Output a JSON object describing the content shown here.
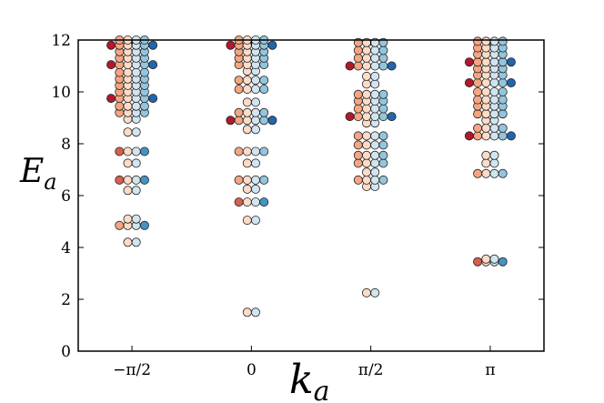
{
  "chart_data": {
    "type": "scatter",
    "title": "",
    "xlabel": "k",
    "xlabel_subscript": "a",
    "ylabel": "E",
    "ylabel_subscript": "a",
    "x_ticks": [
      {
        "value": 0,
        "label": "−π/2"
      },
      {
        "value": 1,
        "label": "0"
      },
      {
        "value": 2,
        "label": "π/2"
      },
      {
        "value": 3,
        "label": "π"
      }
    ],
    "y_ticks": [
      0,
      2,
      4,
      6,
      8,
      10,
      12
    ],
    "ylim": [
      0,
      12
    ],
    "xlim": [
      -0.45,
      3.45
    ],
    "grid": false,
    "legend": "none",
    "marker_colors": {
      "dark_red": "#b2182b",
      "red": "#d6604d",
      "salmon": "#f4a582",
      "peach": "#fddbc7",
      "light_blue": "#d1e5f0",
      "sky_blue": "#92c5de",
      "steel_blue": "#4393c3",
      "dark_blue": "#2166ac"
    },
    "columns": [
      {
        "k_index": 0,
        "bands": [
          [
            4.2,
            [
              "peach",
              "light_blue"
            ]
          ],
          [
            4.85,
            [
              "salmon",
              "peach",
              "light_blue",
              "steel_blue"
            ]
          ],
          [
            5.1,
            [
              "peach",
              "light_blue"
            ]
          ],
          [
            6.2,
            [
              "peach",
              "light_blue"
            ]
          ],
          [
            6.6,
            [
              "red",
              "peach",
              "light_blue",
              "steel_blue"
            ]
          ],
          [
            7.25,
            [
              "peach",
              "light_blue"
            ]
          ],
          [
            7.7,
            [
              "red",
              "peach",
              "light_blue",
              "steel_blue"
            ]
          ],
          [
            8.45,
            [
              "peach",
              "light_blue"
            ]
          ],
          [
            8.95,
            [
              "peach",
              "light_blue"
            ]
          ],
          [
            9.2,
            [
              "salmon",
              "peach",
              "light_blue",
              "sky_blue"
            ]
          ],
          [
            9.45,
            [
              "salmon",
              "peach",
              "light_blue",
              "sky_blue"
            ]
          ],
          [
            9.75,
            [
              "dark_red",
              "salmon",
              "peach",
              "light_blue",
              "sky_blue",
              "dark_blue"
            ]
          ],
          [
            10.0,
            [
              "salmon",
              "peach",
              "light_blue",
              "sky_blue"
            ]
          ],
          [
            10.25,
            [
              "salmon",
              "peach",
              "light_blue",
              "sky_blue"
            ]
          ],
          [
            10.5,
            [
              "salmon",
              "peach",
              "light_blue",
              "sky_blue"
            ]
          ],
          [
            10.75,
            [
              "salmon",
              "peach",
              "light_blue",
              "sky_blue"
            ]
          ],
          [
            11.05,
            [
              "dark_red",
              "salmon",
              "peach",
              "light_blue",
              "sky_blue",
              "dark_blue"
            ]
          ],
          [
            11.3,
            [
              "salmon",
              "peach",
              "light_blue",
              "sky_blue"
            ]
          ],
          [
            11.55,
            [
              "salmon",
              "peach",
              "light_blue",
              "sky_blue"
            ]
          ],
          [
            11.8,
            [
              "dark_red",
              "salmon",
              "peach",
              "light_blue",
              "sky_blue",
              "dark_blue"
            ]
          ],
          [
            12.0,
            [
              "salmon",
              "peach",
              "light_blue",
              "sky_blue"
            ]
          ]
        ]
      },
      {
        "k_index": 1,
        "bands": [
          [
            1.5,
            [
              "peach",
              "light_blue"
            ]
          ],
          [
            5.05,
            [
              "peach",
              "light_blue"
            ]
          ],
          [
            5.75,
            [
              "red",
              "peach",
              "light_blue",
              "steel_blue"
            ]
          ],
          [
            6.25,
            [
              "peach",
              "light_blue"
            ]
          ],
          [
            6.6,
            [
              "salmon",
              "peach",
              "light_blue",
              "sky_blue"
            ]
          ],
          [
            7.25,
            [
              "peach",
              "light_blue"
            ]
          ],
          [
            7.7,
            [
              "salmon",
              "peach",
              "light_blue",
              "sky_blue"
            ]
          ],
          [
            8.55,
            [
              "peach",
              "light_blue"
            ]
          ],
          [
            8.9,
            [
              "dark_red",
              "salmon",
              "peach",
              "light_blue",
              "sky_blue",
              "dark_blue"
            ]
          ],
          [
            9.2,
            [
              "salmon",
              "peach",
              "light_blue",
              "sky_blue"
            ]
          ],
          [
            9.6,
            [
              "peach",
              "light_blue"
            ]
          ],
          [
            10.1,
            [
              "salmon",
              "peach",
              "light_blue",
              "sky_blue"
            ]
          ],
          [
            10.45,
            [
              "salmon",
              "peach",
              "light_blue",
              "sky_blue"
            ]
          ],
          [
            10.8,
            [
              "peach",
              "light_blue"
            ]
          ],
          [
            11.05,
            [
              "salmon",
              "peach",
              "light_blue",
              "sky_blue"
            ]
          ],
          [
            11.3,
            [
              "salmon",
              "peach",
              "light_blue",
              "sky_blue"
            ]
          ],
          [
            11.55,
            [
              "salmon",
              "peach",
              "light_blue",
              "sky_blue"
            ]
          ],
          [
            11.8,
            [
              "dark_red",
              "salmon",
              "peach",
              "light_blue",
              "sky_blue",
              "dark_blue"
            ]
          ],
          [
            12.0,
            [
              "salmon",
              "peach",
              "light_blue",
              "sky_blue"
            ]
          ]
        ]
      },
      {
        "k_index": 2,
        "bands": [
          [
            2.25,
            [
              "peach",
              "light_blue"
            ]
          ],
          [
            6.35,
            [
              "peach",
              "light_blue"
            ]
          ],
          [
            6.6,
            [
              "salmon",
              "peach",
              "light_blue",
              "sky_blue"
            ]
          ],
          [
            6.9,
            [
              "peach",
              "light_blue"
            ]
          ],
          [
            7.25,
            [
              "salmon",
              "peach",
              "light_blue",
              "sky_blue"
            ]
          ],
          [
            7.55,
            [
              "salmon",
              "peach",
              "light_blue",
              "sky_blue"
            ]
          ],
          [
            7.95,
            [
              "salmon",
              "peach",
              "light_blue",
              "sky_blue"
            ]
          ],
          [
            8.3,
            [
              "salmon",
              "peach",
              "light_blue",
              "sky_blue"
            ]
          ],
          [
            8.8,
            [
              "peach",
              "light_blue"
            ]
          ],
          [
            9.05,
            [
              "dark_red",
              "salmon",
              "peach",
              "light_blue",
              "sky_blue",
              "dark_blue"
            ]
          ],
          [
            9.35,
            [
              "salmon",
              "peach",
              "light_blue",
              "sky_blue"
            ]
          ],
          [
            9.65,
            [
              "salmon",
              "peach",
              "light_blue",
              "sky_blue"
            ]
          ],
          [
            9.9,
            [
              "salmon",
              "peach",
              "light_blue",
              "sky_blue"
            ]
          ],
          [
            10.3,
            [
              "peach",
              "light_blue"
            ]
          ],
          [
            10.6,
            [
              "peach",
              "light_blue"
            ]
          ],
          [
            11.0,
            [
              "dark_red",
              "salmon",
              "peach",
              "light_blue",
              "sky_blue",
              "dark_blue"
            ]
          ],
          [
            11.3,
            [
              "salmon",
              "peach",
              "light_blue",
              "sky_blue"
            ]
          ],
          [
            11.6,
            [
              "salmon",
              "peach",
              "light_blue",
              "sky_blue"
            ]
          ],
          [
            11.9,
            [
              "salmon",
              "peach",
              "light_blue",
              "sky_blue"
            ]
          ]
        ]
      },
      {
        "k_index": 3,
        "bands": [
          [
            3.45,
            [
              "red",
              "peach",
              "light_blue",
              "steel_blue"
            ]
          ],
          [
            3.55,
            [
              "peach",
              "light_blue"
            ]
          ],
          [
            6.85,
            [
              "salmon",
              "peach",
              "light_blue",
              "sky_blue"
            ]
          ],
          [
            7.25,
            [
              "peach",
              "light_blue"
            ]
          ],
          [
            7.55,
            [
              "peach",
              "light_blue"
            ]
          ],
          [
            8.3,
            [
              "dark_red",
              "salmon",
              "peach",
              "light_blue",
              "sky_blue",
              "dark_blue"
            ]
          ],
          [
            8.6,
            [
              "salmon",
              "peach",
              "light_blue",
              "sky_blue"
            ]
          ],
          [
            8.9,
            [
              "peach",
              "light_blue"
            ]
          ],
          [
            9.15,
            [
              "salmon",
              "peach",
              "light_blue",
              "sky_blue"
            ]
          ],
          [
            9.45,
            [
              "salmon",
              "peach",
              "light_blue",
              "sky_blue"
            ]
          ],
          [
            9.7,
            [
              "salmon",
              "peach",
              "light_blue",
              "sky_blue"
            ]
          ],
          [
            10.0,
            [
              "salmon",
              "peach",
              "light_blue",
              "sky_blue"
            ]
          ],
          [
            10.35,
            [
              "dark_red",
              "salmon",
              "peach",
              "light_blue",
              "sky_blue",
              "dark_blue"
            ]
          ],
          [
            10.65,
            [
              "salmon",
              "peach",
              "light_blue",
              "sky_blue"
            ]
          ],
          [
            10.9,
            [
              "salmon",
              "peach",
              "light_blue",
              "sky_blue"
            ]
          ],
          [
            11.15,
            [
              "dark_red",
              "salmon",
              "peach",
              "light_blue",
              "sky_blue",
              "dark_blue"
            ]
          ],
          [
            11.45,
            [
              "salmon",
              "peach",
              "light_blue",
              "sky_blue"
            ]
          ],
          [
            11.7,
            [
              "salmon",
              "peach",
              "light_blue",
              "sky_blue"
            ]
          ],
          [
            11.95,
            [
              "salmon",
              "peach",
              "light_blue",
              "sky_blue"
            ]
          ]
        ]
      }
    ]
  }
}
